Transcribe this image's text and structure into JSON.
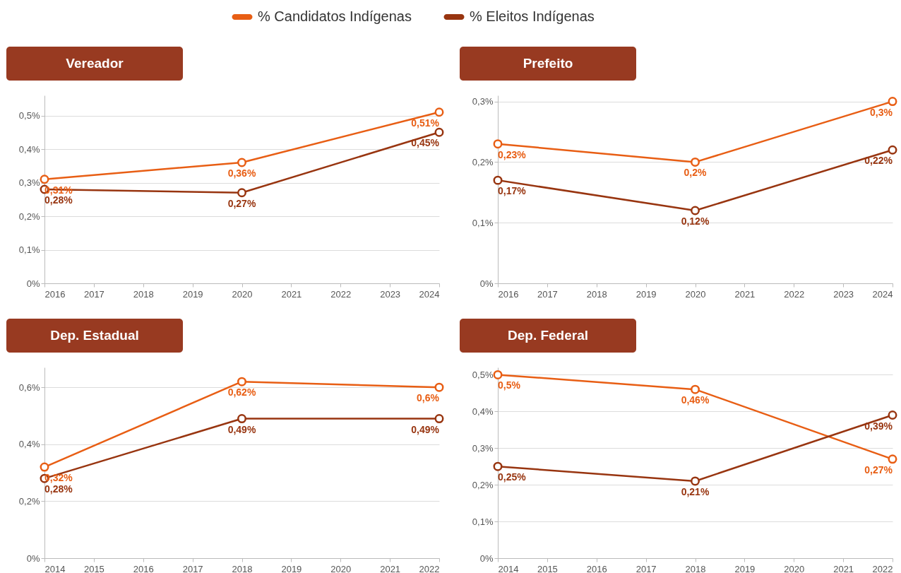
{
  "chart_data": [
    {
      "type": "line",
      "title": "Vereador",
      "x": [
        2016,
        2020,
        2024
      ],
      "xlim": [
        2016,
        2024
      ],
      "xticks": [
        2016,
        2017,
        2018,
        2019,
        2020,
        2021,
        2022,
        2023,
        2024
      ],
      "ylim": [
        0,
        0.56
      ],
      "yticks": [
        {
          "value": 0,
          "label": "0%"
        },
        {
          "value": 0.1,
          "label": "0,1%"
        },
        {
          "value": 0.2,
          "label": "0,2%"
        },
        {
          "value": 0.3,
          "label": "0,3%"
        },
        {
          "value": 0.4,
          "label": "0,4%"
        },
        {
          "value": 0.5,
          "label": "0,5%"
        }
      ],
      "grid": "y",
      "legend": "top",
      "marker": "circle",
      "series": [
        {
          "name": "% Candidatos Indígenas",
          "color": "#e85e14",
          "values": [
            0.31,
            0.36,
            0.51
          ],
          "value_labels": [
            "0,31%",
            "0,36%",
            "0,51%"
          ]
        },
        {
          "name": "% Eleitos Indígenas",
          "color": "#983510",
          "values": [
            0.28,
            0.27,
            0.45
          ],
          "value_labels": [
            "0,28%",
            "0,27%",
            "0,45%"
          ]
        }
      ]
    },
    {
      "type": "line",
      "title": "Prefeito",
      "x": [
        2016,
        2020,
        2024
      ],
      "xlim": [
        2016,
        2024
      ],
      "xticks": [
        2016,
        2017,
        2018,
        2019,
        2020,
        2021,
        2022,
        2023,
        2024
      ],
      "ylim": [
        0,
        0.31
      ],
      "yticks": [
        {
          "value": 0,
          "label": "0%"
        },
        {
          "value": 0.1,
          "label": "0,1%"
        },
        {
          "value": 0.2,
          "label": "0,2%"
        },
        {
          "value": 0.3,
          "label": "0,3%"
        }
      ],
      "grid": "y",
      "marker": "circle",
      "series": [
        {
          "color": "#e85e14",
          "values": [
            0.23,
            0.2,
            0.3
          ],
          "value_labels": [
            "0,23%",
            "0,2%",
            "0,3%"
          ]
        },
        {
          "color": "#983510",
          "values": [
            0.17,
            0.12,
            0.22
          ],
          "value_labels": [
            "0,17%",
            "0,12%",
            "0,22%"
          ]
        }
      ]
    },
    {
      "type": "line",
      "title": "Dep. Estadual",
      "x": [
        2014,
        2018,
        2022
      ],
      "xlim": [
        2014,
        2022
      ],
      "xticks": [
        2014,
        2015,
        2016,
        2017,
        2018,
        2019,
        2020,
        2021,
        2022
      ],
      "ylim": [
        0,
        0.67
      ],
      "yticks": [
        {
          "value": 0,
          "label": "0%"
        },
        {
          "value": 0.2,
          "label": "0,2%"
        },
        {
          "value": 0.4,
          "label": "0,4%"
        },
        {
          "value": 0.6,
          "label": "0,6%"
        }
      ],
      "grid": "y",
      "marker": "circle",
      "series": [
        {
          "color": "#e85e14",
          "values": [
            0.32,
            0.62,
            0.6
          ],
          "value_labels": [
            "0,32%",
            "0,62%",
            "0,6%"
          ]
        },
        {
          "color": "#983510",
          "values": [
            0.28,
            0.49,
            0.49
          ],
          "value_labels": [
            "0,28%",
            "0,49%",
            "0,49%"
          ]
        }
      ]
    },
    {
      "type": "line",
      "title": "Dep. Federal",
      "x": [
        2014,
        2018,
        2022
      ],
      "xlim": [
        2014,
        2022
      ],
      "xticks": [
        2014,
        2015,
        2016,
        2017,
        2018,
        2019,
        2020,
        2021,
        2022
      ],
      "ylim": [
        0,
        0.52
      ],
      "yticks": [
        {
          "value": 0,
          "label": "0%"
        },
        {
          "value": 0.1,
          "label": "0,1%"
        },
        {
          "value": 0.2,
          "label": "0,2%"
        },
        {
          "value": 0.3,
          "label": "0,3%"
        },
        {
          "value": 0.4,
          "label": "0,4%"
        },
        {
          "value": 0.5,
          "label": "0,5%"
        }
      ],
      "grid": "y",
      "marker": "circle",
      "series": [
        {
          "color": "#e85e14",
          "values": [
            0.5,
            0.46,
            0.27
          ],
          "value_labels": [
            "0,5%",
            "0,46%",
            "0,27%"
          ]
        },
        {
          "color": "#983510",
          "values": [
            0.25,
            0.21,
            0.39
          ],
          "value_labels": [
            "0,25%",
            "0,21%",
            "0,39%"
          ]
        }
      ]
    }
  ]
}
